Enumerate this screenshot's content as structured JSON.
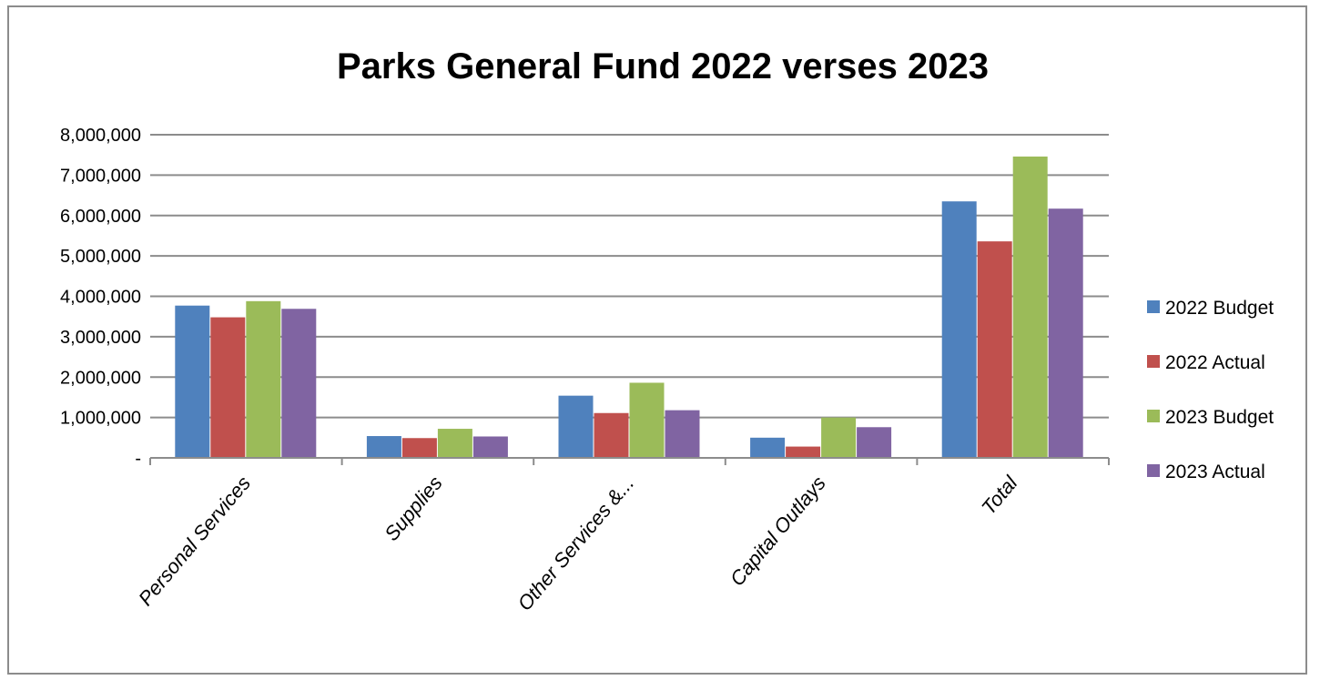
{
  "chart_data": {
    "type": "bar",
    "title": "Parks General Fund 2022 verses 2023",
    "xlabel": "",
    "ylabel": "",
    "categories": [
      "Personal Services",
      "Supplies",
      "Other Services &...",
      "Capital Outlays",
      "Total"
    ],
    "series": [
      {
        "name": "2022 Budget",
        "color": "#4f81bd",
        "values": [
          3770000,
          540000,
          1540000,
          500000,
          6350000
        ]
      },
      {
        "name": "2022 Actual",
        "color": "#c0504d",
        "values": [
          3480000,
          490000,
          1110000,
          280000,
          5360000
        ]
      },
      {
        "name": "2023 Budget",
        "color": "#9bbb59",
        "values": [
          3880000,
          720000,
          1860000,
          1000000,
          7460000
        ]
      },
      {
        "name": "2023 Actual",
        "color": "#8064a2",
        "values": [
          3690000,
          530000,
          1180000,
          760000,
          6170000
        ]
      }
    ],
    "ylim": [
      0,
      8000000
    ],
    "yticks": [
      0,
      1000000,
      2000000,
      3000000,
      4000000,
      5000000,
      6000000,
      7000000,
      8000000
    ],
    "ytick_labels": [
      "-",
      "1,000,000",
      "2,000,000",
      "3,000,000",
      "4,000,000",
      "5,000,000",
      "6,000,000",
      "7,000,000",
      "8,000,000"
    ],
    "grid": true,
    "legend_position": "right",
    "gridline_color": "#8c8c8c"
  }
}
